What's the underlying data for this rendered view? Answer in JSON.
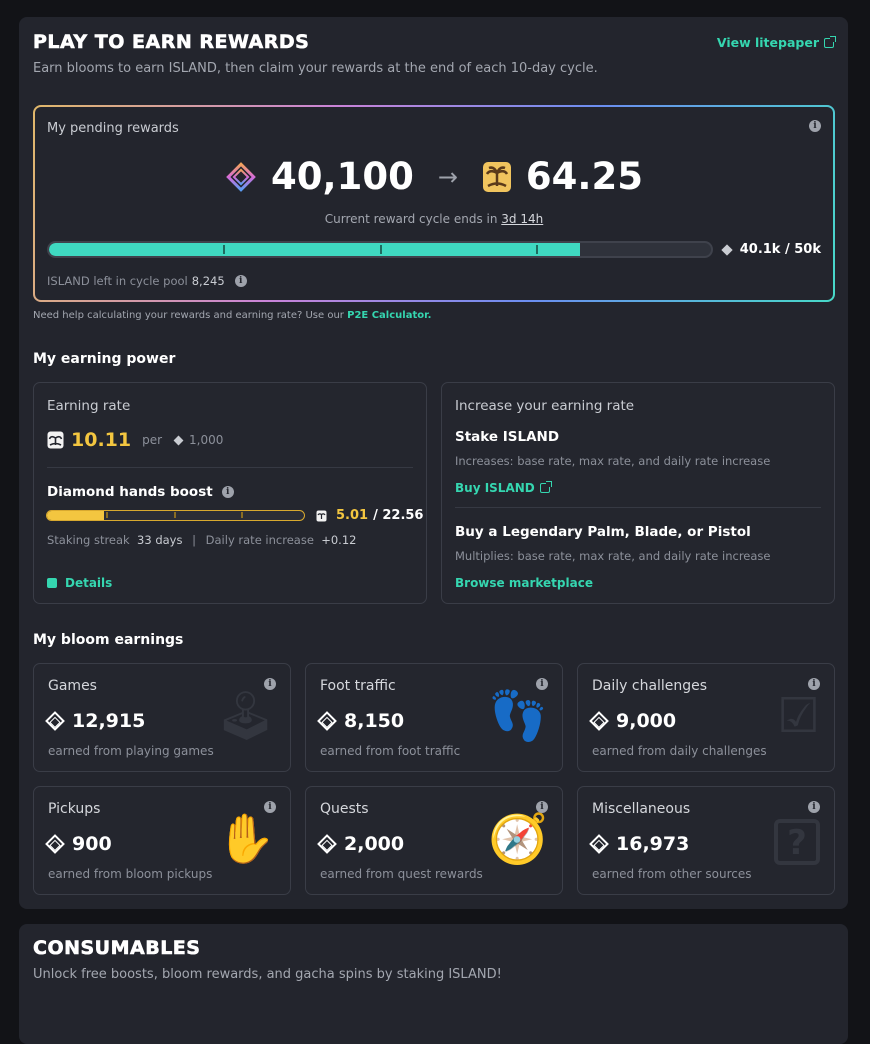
{
  "header": {
    "title": "PLAY TO EARN REWARDS",
    "subtitle": "Earn blooms to earn ISLAND, then claim your rewards at the end of each 10-day cycle.",
    "litepaper_link": "View litepaper"
  },
  "pending": {
    "label": "My pending rewards",
    "blooms": "40,100",
    "island": "64.25",
    "cycle_prefix": "Current reward cycle ends in",
    "cycle_time": "3d 14h",
    "progress_label": "40.1k / 50k",
    "progress_fraction": 0.802,
    "pool_label": "ISLAND left in cycle pool",
    "pool_value": "8,245"
  },
  "help": {
    "text": "Need help calculating your rewards and earning rate? Use our",
    "link": "P2E Calculator."
  },
  "earning_power": {
    "heading": "My earning power",
    "rate_label": "Earning rate",
    "rate_value": "10.11",
    "rate_per": "per",
    "rate_unit": "1,000",
    "boost_label": "Diamond hands boost",
    "boost_fraction": 0.222,
    "boost_value": "5.01",
    "boost_max": "/ 22.56",
    "streak_label": "Staking streak",
    "streak_value": "33 days",
    "daily_label": "Daily rate increase",
    "daily_value": "+0.12",
    "details": "Details"
  },
  "increase": {
    "heading": "Increase your earning rate",
    "stake_title": "Stake ISLAND",
    "stake_desc": "Increases: base rate, max rate, and daily rate increase",
    "buy_link": "Buy ISLAND",
    "legendary_title": "Buy a Legendary Palm, Blade, or Pistol",
    "legendary_desc": "Multiplies: base rate, max rate, and daily rate increase",
    "marketplace_link": "Browse marketplace"
  },
  "bloom_earnings": {
    "heading": "My bloom earnings",
    "cards": [
      {
        "title": "Games",
        "value": "12,915",
        "sub": "earned from playing games",
        "icon": "joystick-icon"
      },
      {
        "title": "Foot traffic",
        "value": "8,150",
        "sub": "earned from foot traffic",
        "icon": "footprints-icon"
      },
      {
        "title": "Daily challenges",
        "value": "9,000",
        "sub": "earned from daily challenges",
        "icon": "checklist-icon"
      },
      {
        "title": "Pickups",
        "value": "900",
        "sub": "earned from bloom pickups",
        "icon": "hands-icon"
      },
      {
        "title": "Quests",
        "value": "2,000",
        "sub": "earned from quest rewards",
        "icon": "compass-icon"
      },
      {
        "title": "Miscellaneous",
        "value": "16,973",
        "sub": "earned from other sources",
        "icon": "question-box-icon"
      }
    ]
  },
  "consumables": {
    "title": "CONSUMABLES",
    "subtitle": "Unlock free boosts, bloom rewards, and gacha spins by staking ISLAND!"
  },
  "colors": {
    "accent": "#35d6b0",
    "gold": "#f3c640",
    "panel": "#23252d",
    "page_bg": "#121317"
  }
}
